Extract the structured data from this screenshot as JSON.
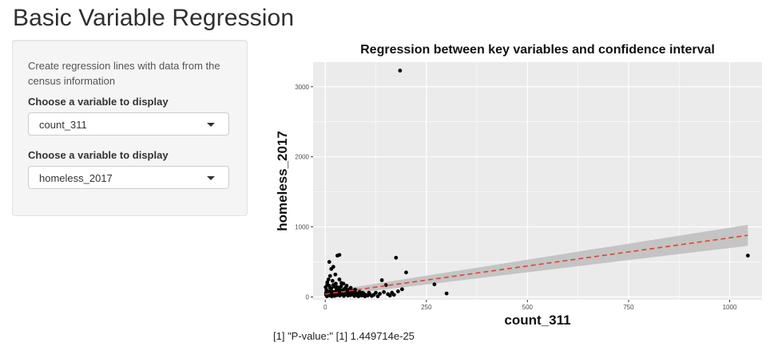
{
  "page": {
    "title": "Basic Variable Regression"
  },
  "sidebar": {
    "description": "Create regression lines with data from the census information",
    "select_x": {
      "label": "Choose a variable to display",
      "value": "count_311"
    },
    "select_y": {
      "label": "Choose a variable to display",
      "value": "homeless_2017"
    }
  },
  "output": {
    "pvalue_text": "[1] \"P-value:\" [1] 1.449714e-25"
  },
  "colors": {
    "panel_bg": "#ebebeb",
    "grid": "#ffffff",
    "points": "#000000",
    "regression_line": "#e8402e",
    "confidence_band": "#bdbdbd"
  },
  "chart_data": {
    "type": "scatter",
    "title": "Regression between key variables and confidence interval",
    "xlabel": "count_311",
    "ylabel": "homeless_2017",
    "xlim": [
      -30,
      1080
    ],
    "ylim": [
      -40,
      3350
    ],
    "x_ticks": [
      0,
      250,
      500,
      750,
      1000
    ],
    "y_ticks": [
      0,
      1000,
      2000,
      3000
    ],
    "grid": true,
    "legend": "none",
    "regression": {
      "style": "dashed",
      "x": [
        0,
        1045
      ],
      "y": [
        40,
        880
      ],
      "ci_lower": [
        5,
        730
      ],
      "ci_upper": [
        75,
        1030
      ]
    },
    "points": [
      [
        185,
        3230
      ],
      [
        1045,
        590
      ],
      [
        200,
        350
      ],
      [
        270,
        180
      ],
      [
        300,
        50
      ],
      [
        175,
        560
      ],
      [
        180,
        80
      ],
      [
        165,
        60
      ],
      [
        190,
        110
      ],
      [
        155,
        40
      ],
      [
        140,
        240
      ],
      [
        150,
        170
      ],
      [
        145,
        70
      ],
      [
        120,
        30
      ],
      [
        125,
        60
      ],
      [
        100,
        30
      ],
      [
        105,
        20
      ],
      [
        110,
        40
      ],
      [
        95,
        50
      ],
      [
        90,
        20
      ],
      [
        30,
        590
      ],
      [
        35,
        600
      ],
      [
        10,
        500
      ],
      [
        15,
        400
      ],
      [
        20,
        430
      ],
      [
        12,
        300
      ],
      [
        25,
        320
      ],
      [
        8,
        250
      ],
      [
        18,
        230
      ],
      [
        35,
        250
      ],
      [
        40,
        200
      ],
      [
        5,
        180
      ],
      [
        45,
        190
      ],
      [
        10,
        160
      ],
      [
        22,
        150
      ],
      [
        30,
        140
      ],
      [
        50,
        130
      ],
      [
        15,
        120
      ],
      [
        28,
        110
      ],
      [
        55,
        100
      ],
      [
        60,
        110
      ],
      [
        65,
        80
      ],
      [
        70,
        90
      ],
      [
        75,
        60
      ],
      [
        80,
        50
      ],
      [
        85,
        70
      ],
      [
        3,
        100
      ],
      [
        6,
        80
      ],
      [
        9,
        60
      ],
      [
        14,
        90
      ],
      [
        17,
        40
      ],
      [
        21,
        70
      ],
      [
        24,
        30
      ],
      [
        27,
        80
      ],
      [
        32,
        50
      ],
      [
        36,
        20
      ],
      [
        40,
        60
      ],
      [
        44,
        40
      ],
      [
        48,
        30
      ],
      [
        52,
        70
      ],
      [
        56,
        20
      ],
      [
        2,
        30
      ],
      [
        4,
        10
      ],
      [
        7,
        50
      ],
      [
        11,
        20
      ],
      [
        13,
        70
      ],
      [
        16,
        10
      ],
      [
        19,
        45
      ],
      [
        23,
        15
      ],
      [
        26,
        55
      ],
      [
        29,
        25
      ],
      [
        33,
        85
      ],
      [
        38,
        35
      ],
      [
        42,
        95
      ],
      [
        46,
        15
      ],
      [
        58,
        45
      ],
      [
        62,
        25
      ],
      [
        68,
        35
      ],
      [
        72,
        15
      ],
      [
        78,
        25
      ],
      [
        82,
        10
      ],
      [
        88,
        35
      ],
      [
        92,
        60
      ],
      [
        98,
        10
      ],
      [
        108,
        60
      ],
      [
        115,
        15
      ],
      [
        130,
        10
      ],
      [
        135,
        45
      ],
      [
        160,
        20
      ],
      [
        170,
        30
      ],
      [
        1,
        140
      ],
      [
        2,
        60
      ],
      [
        5,
        210
      ],
      [
        8,
        40
      ],
      [
        12,
        130
      ],
      [
        20,
        170
      ],
      [
        26,
        190
      ],
      [
        34,
        120
      ],
      [
        39,
        150
      ],
      [
        47,
        110
      ],
      [
        53,
        160
      ],
      [
        57,
        90
      ],
      [
        63,
        130
      ],
      [
        67,
        55
      ],
      [
        74,
        105
      ]
    ]
  }
}
